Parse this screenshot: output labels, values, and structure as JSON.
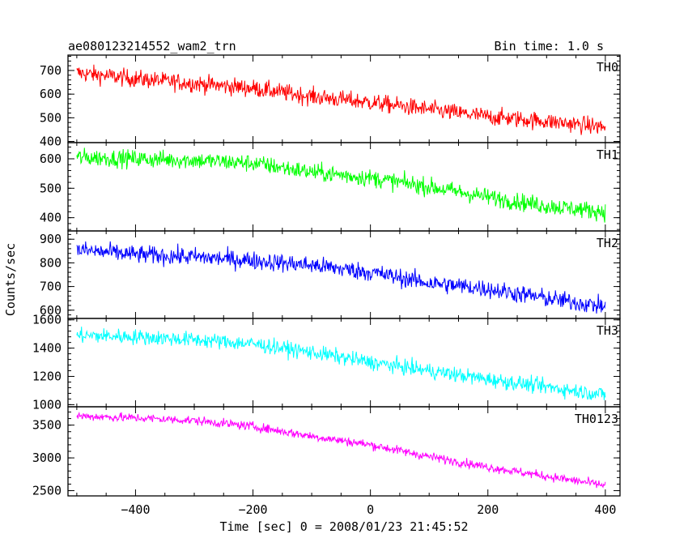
{
  "chart_data": {
    "type": "line",
    "title": "ae080123214552_wam2_trn",
    "bin_label": "Bin time: 1.0 s",
    "xlabel": "Time [sec] 0 = 2008/01/23 21:45:52",
    "ylabel": "Counts/sec",
    "xlim": [
      -515,
      425
    ],
    "x_range": [
      -500,
      400
    ],
    "x_ticks": [
      -400,
      -200,
      0,
      200,
      400
    ],
    "x_tick_labels": [
      "−400",
      "−200",
      "0",
      "200",
      "400"
    ],
    "panels": [
      {
        "name": "TH0",
        "color": "#ff0000",
        "ylim": [
          395,
          765
        ],
        "y_ticks": [
          400,
          500,
          600,
          700
        ],
        "trend": [
          [
            -500,
            690
          ],
          [
            -400,
            665
          ],
          [
            -300,
            645
          ],
          [
            -200,
            625
          ],
          [
            -100,
            590
          ],
          [
            0,
            565
          ],
          [
            100,
            535
          ],
          [
            200,
            505
          ],
          [
            300,
            485
          ],
          [
            400,
            460
          ]
        ],
        "noise": 26
      },
      {
        "name": "TH1",
        "color": "#00ff00",
        "ylim": [
          355,
          655
        ],
        "y_ticks": [
          400,
          500,
          600
        ],
        "trend": [
          [
            -500,
            605
          ],
          [
            -400,
            600
          ],
          [
            -300,
            595
          ],
          [
            -200,
            585
          ],
          [
            -100,
            555
          ],
          [
            0,
            535
          ],
          [
            100,
            505
          ],
          [
            200,
            470
          ],
          [
            300,
            440
          ],
          [
            400,
            420
          ]
        ],
        "noise": 21
      },
      {
        "name": "TH2",
        "color": "#0000ff",
        "ylim": [
          565,
          935
        ],
        "y_ticks": [
          600,
          700,
          800,
          900
        ],
        "trend": [
          [
            -500,
            855
          ],
          [
            -400,
            835
          ],
          [
            -300,
            825
          ],
          [
            -200,
            810
          ],
          [
            -100,
            790
          ],
          [
            0,
            760
          ],
          [
            100,
            715
          ],
          [
            200,
            690
          ],
          [
            300,
            650
          ],
          [
            400,
            615
          ]
        ],
        "noise": 27
      },
      {
        "name": "TH3",
        "color": "#00ffff",
        "ylim": [
          985,
          1610
        ],
        "y_ticks": [
          1000,
          1200,
          1400,
          1600
        ],
        "trend": [
          [
            -500,
            1490
          ],
          [
            -400,
            1480
          ],
          [
            -300,
            1460
          ],
          [
            -200,
            1430
          ],
          [
            -100,
            1370
          ],
          [
            0,
            1300
          ],
          [
            100,
            1240
          ],
          [
            200,
            1180
          ],
          [
            300,
            1125
          ],
          [
            400,
            1070
          ]
        ],
        "noise": 38
      },
      {
        "name": "TH0123",
        "color": "#ff00ff",
        "ylim": [
          2420,
          3780
        ],
        "y_ticks": [
          2500,
          3000,
          3500
        ],
        "trend": [
          [
            -500,
            3640
          ],
          [
            -400,
            3610
          ],
          [
            -300,
            3570
          ],
          [
            -200,
            3480
          ],
          [
            -100,
            3330
          ],
          [
            0,
            3200
          ],
          [
            100,
            3020
          ],
          [
            200,
            2860
          ],
          [
            300,
            2720
          ],
          [
            400,
            2580
          ]
        ],
        "noise": 48
      }
    ]
  }
}
